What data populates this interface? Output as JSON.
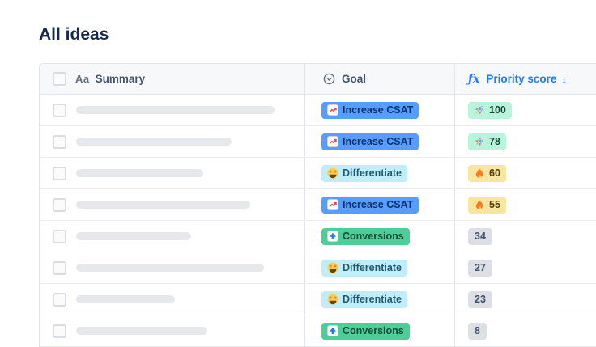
{
  "page": {
    "title": "All ideas"
  },
  "colors": {
    "heading_text": "#172B4D",
    "accent_blue": "#1D7AFC",
    "badge_blue_bg": "#579DFF",
    "badge_teal_bg": "#C1ECF9",
    "badge_green_bg": "#4BCE97",
    "score_green_bg": "#BAF3DB",
    "score_yellow_bg": "#F8E6A0",
    "score_gray_bg": "#DCDFE4",
    "header_row_bg": "#F7F8F9"
  },
  "table": {
    "columns": {
      "summary": {
        "label": "Summary",
        "type_icon": "Aa"
      },
      "goal": {
        "label": "Goal",
        "icon": "select-circle-icon"
      },
      "priority": {
        "fx": "ƒx",
        "label": "Priority score",
        "sort_arrow": "↓"
      }
    },
    "rows": [
      {
        "summary_bar_width": 245,
        "goal": {
          "label": "Increase CSAT",
          "icon": "chart-increase-icon",
          "style": "blue"
        },
        "score": {
          "value": "100",
          "icon": "rocket-icon",
          "style": "green"
        }
      },
      {
        "summary_bar_width": 192,
        "goal": {
          "label": "Increase CSAT",
          "icon": "chart-increase-icon",
          "style": "blue"
        },
        "score": {
          "value": "78",
          "icon": "rocket-icon",
          "style": "green"
        }
      },
      {
        "summary_bar_width": 157,
        "goal": {
          "label": "Differentiate",
          "icon": "star-struck-icon",
          "style": "teal"
        },
        "score": {
          "value": "60",
          "icon": "fire-icon",
          "style": "yellow"
        }
      },
      {
        "summary_bar_width": 215,
        "goal": {
          "label": "Increase CSAT",
          "icon": "chart-increase-icon",
          "style": "blue"
        },
        "score": {
          "value": "55",
          "icon": "fire-icon",
          "style": "yellow"
        }
      },
      {
        "summary_bar_width": 142,
        "goal": {
          "label": "Conversions",
          "icon": "arrow-up-icon",
          "style": "green"
        },
        "score": {
          "value": "34",
          "style": "gray"
        }
      },
      {
        "summary_bar_width": 232,
        "goal": {
          "label": "Differentiate",
          "icon": "star-struck-icon",
          "style": "teal"
        },
        "score": {
          "value": "27",
          "style": "gray"
        }
      },
      {
        "summary_bar_width": 122,
        "goal": {
          "label": "Differentiate",
          "icon": "star-struck-icon",
          "style": "teal"
        },
        "score": {
          "value": "23",
          "style": "gray"
        }
      },
      {
        "summary_bar_width": 162,
        "goal": {
          "label": "Conversions",
          "icon": "arrow-up-icon",
          "style": "green"
        },
        "score": {
          "value": "8",
          "style": "gray"
        }
      }
    ]
  }
}
